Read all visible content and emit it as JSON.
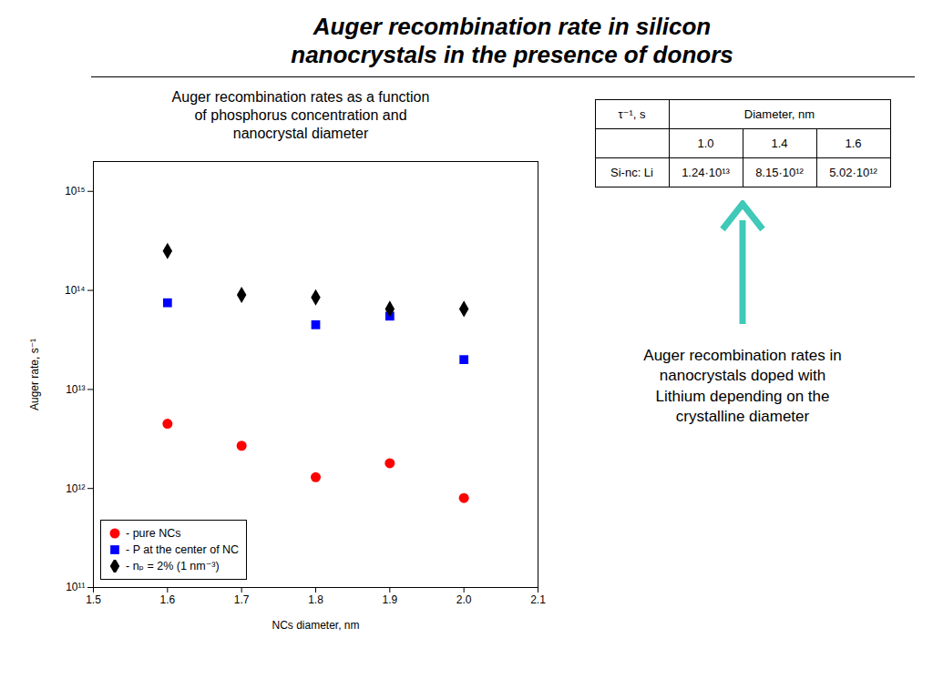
{
  "chart_data": {
    "type": "scatter",
    "title": "Auger recombination rate in silicon\nnanocrystals in the presence of donors",
    "subtitle": "Auger recombination rates as a function\nof phosphorus concentration and\nnanocrystal diameter",
    "x_label": "NCs diameter, nm",
    "y_label": "Auger rate, s⁻¹",
    "log": "y",
    "grid": false,
    "legend": "lower left",
    "xlim": [
      1.5,
      2.1
    ],
    "xticks": [
      1.5,
      1.6,
      1.7,
      1.8,
      1.9,
      {
        "value": 2.0,
        "label": "2.0"
      },
      2.1
    ],
    "ylim": [
      100000000000.0,
      2000000000000000.0
    ],
    "yticks": [
      {
        "value": 100000000000.0,
        "label": "10¹¹"
      },
      {
        "value": 1000000000000.0,
        "label": "10¹²"
      },
      {
        "value": 10000000000000.0,
        "label": "10¹³"
      },
      {
        "value": 100000000000000.0,
        "label": "10¹⁴"
      },
      {
        "value": 1000000000000000.0,
        "label": "10¹⁵"
      }
    ],
    "series": [
      {
        "name": "- pure NCs",
        "color": "red",
        "marker": "circle",
        "x": [
          1.6,
          1.7,
          1.8,
          1.9,
          2.0
        ],
        "values": [
          4500000000000.0,
          2700000000000.0,
          1300000000000.0,
          1800000000000.0,
          800000000000.0
        ]
      },
      {
        "name": "- P at the center of NC",
        "color": "blue",
        "marker": "square",
        "x": [
          1.6,
          1.8,
          1.9,
          2.0
        ],
        "values": [
          75000000000000.0,
          45000000000000.0,
          55000000000000.0,
          20000000000000.0
        ]
      },
      {
        "name": "- nₚ = 2% (1 nm⁻³)",
        "color": "black",
        "marker": "diamond",
        "x": [
          1.6,
          1.7,
          1.8,
          1.9,
          2.0
        ],
        "values": [
          250000000000000.0,
          90000000000000.0,
          85000000000000.0,
          65000000000000.0,
          65000000000000.0
        ]
      }
    ],
    "table": {
      "corner": "τ⁻¹, s",
      "header": "Diameter, nm",
      "columns": [
        "1.0",
        "1.4",
        "1.6"
      ],
      "rows": [
        {
          "name": "Si-nc: Li",
          "values": [
            12400000000000.0,
            8150000000000.0,
            5020000000000.0
          ],
          "value_labels": [
            "1.24·10¹³",
            "8.15·10¹²",
            "5.02·10¹²"
          ]
        }
      ]
    },
    "annotations": [
      "Auger recombination rates in\nnanocrystals doped with\nLithium depending on the\ncrystalline diameter"
    ]
  }
}
